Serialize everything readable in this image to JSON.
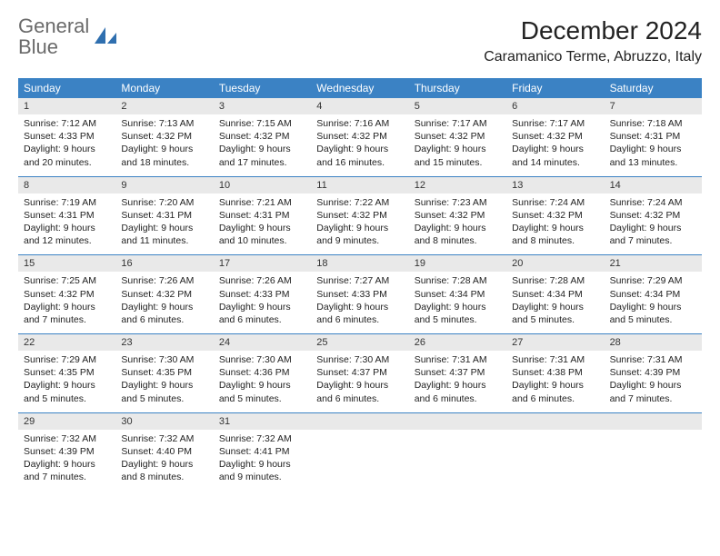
{
  "logo": {
    "text_gray": "General",
    "text_blue": "Blue"
  },
  "title": "December 2024",
  "location": "Caramanico Terme, Abruzzo, Italy",
  "colors": {
    "header_bg": "#3b82c4",
    "date_strip_bg": "#e9e9e9",
    "rule": "#3b82c4",
    "text": "#222222",
    "logo_gray": "#6a6a6a",
    "logo_blue": "#3b82c4"
  },
  "day_names": [
    "Sunday",
    "Monday",
    "Tuesday",
    "Wednesday",
    "Thursday",
    "Friday",
    "Saturday"
  ],
  "weeks": [
    [
      {
        "d": "1",
        "sr": "Sunrise: 7:12 AM",
        "ss": "Sunset: 4:33 PM",
        "dl1": "Daylight: 9 hours",
        "dl2": "and 20 minutes."
      },
      {
        "d": "2",
        "sr": "Sunrise: 7:13 AM",
        "ss": "Sunset: 4:32 PM",
        "dl1": "Daylight: 9 hours",
        "dl2": "and 18 minutes."
      },
      {
        "d": "3",
        "sr": "Sunrise: 7:15 AM",
        "ss": "Sunset: 4:32 PM",
        "dl1": "Daylight: 9 hours",
        "dl2": "and 17 minutes."
      },
      {
        "d": "4",
        "sr": "Sunrise: 7:16 AM",
        "ss": "Sunset: 4:32 PM",
        "dl1": "Daylight: 9 hours",
        "dl2": "and 16 minutes."
      },
      {
        "d": "5",
        "sr": "Sunrise: 7:17 AM",
        "ss": "Sunset: 4:32 PM",
        "dl1": "Daylight: 9 hours",
        "dl2": "and 15 minutes."
      },
      {
        "d": "6",
        "sr": "Sunrise: 7:17 AM",
        "ss": "Sunset: 4:32 PM",
        "dl1": "Daylight: 9 hours",
        "dl2": "and 14 minutes."
      },
      {
        "d": "7",
        "sr": "Sunrise: 7:18 AM",
        "ss": "Sunset: 4:31 PM",
        "dl1": "Daylight: 9 hours",
        "dl2": "and 13 minutes."
      }
    ],
    [
      {
        "d": "8",
        "sr": "Sunrise: 7:19 AM",
        "ss": "Sunset: 4:31 PM",
        "dl1": "Daylight: 9 hours",
        "dl2": "and 12 minutes."
      },
      {
        "d": "9",
        "sr": "Sunrise: 7:20 AM",
        "ss": "Sunset: 4:31 PM",
        "dl1": "Daylight: 9 hours",
        "dl2": "and 11 minutes."
      },
      {
        "d": "10",
        "sr": "Sunrise: 7:21 AM",
        "ss": "Sunset: 4:31 PM",
        "dl1": "Daylight: 9 hours",
        "dl2": "and 10 minutes."
      },
      {
        "d": "11",
        "sr": "Sunrise: 7:22 AM",
        "ss": "Sunset: 4:32 PM",
        "dl1": "Daylight: 9 hours",
        "dl2": "and 9 minutes."
      },
      {
        "d": "12",
        "sr": "Sunrise: 7:23 AM",
        "ss": "Sunset: 4:32 PM",
        "dl1": "Daylight: 9 hours",
        "dl2": "and 8 minutes."
      },
      {
        "d": "13",
        "sr": "Sunrise: 7:24 AM",
        "ss": "Sunset: 4:32 PM",
        "dl1": "Daylight: 9 hours",
        "dl2": "and 8 minutes."
      },
      {
        "d": "14",
        "sr": "Sunrise: 7:24 AM",
        "ss": "Sunset: 4:32 PM",
        "dl1": "Daylight: 9 hours",
        "dl2": "and 7 minutes."
      }
    ],
    [
      {
        "d": "15",
        "sr": "Sunrise: 7:25 AM",
        "ss": "Sunset: 4:32 PM",
        "dl1": "Daylight: 9 hours",
        "dl2": "and 7 minutes."
      },
      {
        "d": "16",
        "sr": "Sunrise: 7:26 AM",
        "ss": "Sunset: 4:32 PM",
        "dl1": "Daylight: 9 hours",
        "dl2": "and 6 minutes."
      },
      {
        "d": "17",
        "sr": "Sunrise: 7:26 AM",
        "ss": "Sunset: 4:33 PM",
        "dl1": "Daylight: 9 hours",
        "dl2": "and 6 minutes."
      },
      {
        "d": "18",
        "sr": "Sunrise: 7:27 AM",
        "ss": "Sunset: 4:33 PM",
        "dl1": "Daylight: 9 hours",
        "dl2": "and 6 minutes."
      },
      {
        "d": "19",
        "sr": "Sunrise: 7:28 AM",
        "ss": "Sunset: 4:34 PM",
        "dl1": "Daylight: 9 hours",
        "dl2": "and 5 minutes."
      },
      {
        "d": "20",
        "sr": "Sunrise: 7:28 AM",
        "ss": "Sunset: 4:34 PM",
        "dl1": "Daylight: 9 hours",
        "dl2": "and 5 minutes."
      },
      {
        "d": "21",
        "sr": "Sunrise: 7:29 AM",
        "ss": "Sunset: 4:34 PM",
        "dl1": "Daylight: 9 hours",
        "dl2": "and 5 minutes."
      }
    ],
    [
      {
        "d": "22",
        "sr": "Sunrise: 7:29 AM",
        "ss": "Sunset: 4:35 PM",
        "dl1": "Daylight: 9 hours",
        "dl2": "and 5 minutes."
      },
      {
        "d": "23",
        "sr": "Sunrise: 7:30 AM",
        "ss": "Sunset: 4:35 PM",
        "dl1": "Daylight: 9 hours",
        "dl2": "and 5 minutes."
      },
      {
        "d": "24",
        "sr": "Sunrise: 7:30 AM",
        "ss": "Sunset: 4:36 PM",
        "dl1": "Daylight: 9 hours",
        "dl2": "and 5 minutes."
      },
      {
        "d": "25",
        "sr": "Sunrise: 7:30 AM",
        "ss": "Sunset: 4:37 PM",
        "dl1": "Daylight: 9 hours",
        "dl2": "and 6 minutes."
      },
      {
        "d": "26",
        "sr": "Sunrise: 7:31 AM",
        "ss": "Sunset: 4:37 PM",
        "dl1": "Daylight: 9 hours",
        "dl2": "and 6 minutes."
      },
      {
        "d": "27",
        "sr": "Sunrise: 7:31 AM",
        "ss": "Sunset: 4:38 PM",
        "dl1": "Daylight: 9 hours",
        "dl2": "and 6 minutes."
      },
      {
        "d": "28",
        "sr": "Sunrise: 7:31 AM",
        "ss": "Sunset: 4:39 PM",
        "dl1": "Daylight: 9 hours",
        "dl2": "and 7 minutes."
      }
    ],
    [
      {
        "d": "29",
        "sr": "Sunrise: 7:32 AM",
        "ss": "Sunset: 4:39 PM",
        "dl1": "Daylight: 9 hours",
        "dl2": "and 7 minutes."
      },
      {
        "d": "30",
        "sr": "Sunrise: 7:32 AM",
        "ss": "Sunset: 4:40 PM",
        "dl1": "Daylight: 9 hours",
        "dl2": "and 8 minutes."
      },
      {
        "d": "31",
        "sr": "Sunrise: 7:32 AM",
        "ss": "Sunset: 4:41 PM",
        "dl1": "Daylight: 9 hours",
        "dl2": "and 9 minutes."
      },
      {
        "d": "",
        "sr": "",
        "ss": "",
        "dl1": "",
        "dl2": ""
      },
      {
        "d": "",
        "sr": "",
        "ss": "",
        "dl1": "",
        "dl2": ""
      },
      {
        "d": "",
        "sr": "",
        "ss": "",
        "dl1": "",
        "dl2": ""
      },
      {
        "d": "",
        "sr": "",
        "ss": "",
        "dl1": "",
        "dl2": ""
      }
    ]
  ]
}
